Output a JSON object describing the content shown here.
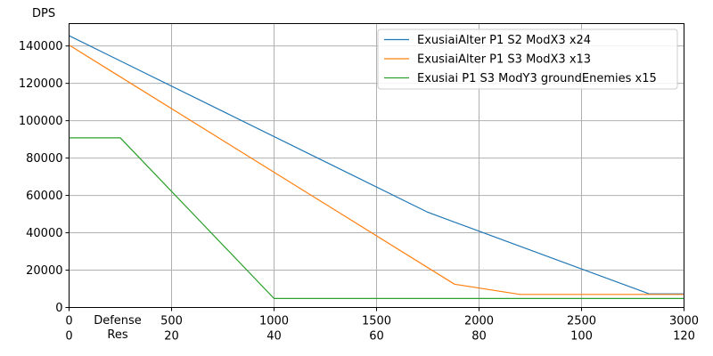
{
  "chart_data": {
    "type": "line",
    "ylabel": "DPS",
    "xlabel_lines": [
      "Defense",
      "Res"
    ],
    "xlim": [
      0,
      3000
    ],
    "ylim": [
      0,
      152000
    ],
    "x_ticks": [
      0,
      500,
      1000,
      1500,
      2000,
      2500,
      3000
    ],
    "x_ticks_secondary": [
      "0",
      "20",
      "40",
      "60",
      "80",
      "100",
      "120"
    ],
    "y_ticks": [
      0,
      20000,
      40000,
      60000,
      80000,
      100000,
      120000,
      140000
    ],
    "grid": true,
    "legend_position": "top-right",
    "series": [
      {
        "name": "ExusiaiAlter P1 S2 ModX3 x24",
        "color": "#1f77b4",
        "points": [
          [
            0,
            145500
          ],
          [
            1750,
            51000
          ],
          [
            2830,
            7300
          ],
          [
            3000,
            7300
          ]
        ]
      },
      {
        "name": "ExusiaiAlter P1 S3 ModX3 x13",
        "color": "#ff7f0e",
        "points": [
          [
            0,
            140500
          ],
          [
            1880,
            12500
          ],
          [
            2200,
            7000
          ],
          [
            3000,
            7000
          ]
        ]
      },
      {
        "name": "Exusiai P1 S3 ModY3 groundEnemies x15",
        "color": "#2ca02c",
        "points": [
          [
            0,
            90800
          ],
          [
            250,
            90800
          ],
          [
            1000,
            4800
          ],
          [
            3000,
            4800
          ]
        ]
      }
    ]
  }
}
